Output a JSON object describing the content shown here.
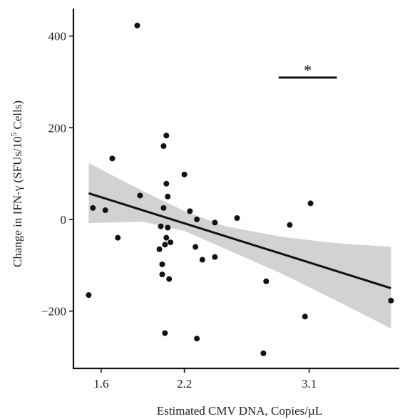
{
  "chart_data": {
    "type": "scatter",
    "title": "",
    "xlabel": "Estimated CMV DNA, Copies/µL",
    "ylabel_parts": {
      "pre": "Change in IFN-γ (SFUs/10",
      "sup": "5",
      "post": " Cells)"
    },
    "xlim": [
      1.4,
      3.75
    ],
    "ylim": [
      -325,
      460
    ],
    "xticks": [
      {
        "label": "1.6",
        "value": 1.6
      },
      {
        "label": "2.2",
        "value": 2.2
      },
      {
        "label": "3.1",
        "value": 3.1
      }
    ],
    "yticks": [
      {
        "label": "400",
        "value": 400
      },
      {
        "label": "200",
        "value": 200
      },
      {
        "label": "0",
        "value": 0
      },
      {
        "label": "−200",
        "value": -200
      }
    ],
    "points": [
      [
        1.51,
        -165
      ],
      [
        1.54,
        25
      ],
      [
        1.63,
        20
      ],
      [
        1.68,
        133
      ],
      [
        1.72,
        -40
      ],
      [
        1.86,
        423
      ],
      [
        1.88,
        52
      ],
      [
        2.02,
        -65
      ],
      [
        2.03,
        -15
      ],
      [
        2.04,
        -98
      ],
      [
        2.04,
        -120
      ],
      [
        2.05,
        160
      ],
      [
        2.05,
        25
      ],
      [
        2.06,
        -55
      ],
      [
        2.06,
        -248
      ],
      [
        2.07,
        183
      ],
      [
        2.07,
        78
      ],
      [
        2.07,
        -40
      ],
      [
        2.08,
        50
      ],
      [
        2.08,
        -18
      ],
      [
        2.09,
        -130
      ],
      [
        2.1,
        -50
      ],
      [
        2.2,
        98
      ],
      [
        2.24,
        18
      ],
      [
        2.28,
        -60
      ],
      [
        2.29,
        0
      ],
      [
        2.29,
        -260
      ],
      [
        2.33,
        -88
      ],
      [
        2.42,
        -7
      ],
      [
        2.42,
        -82
      ],
      [
        2.58,
        3
      ],
      [
        2.77,
        -292
      ],
      [
        2.79,
        -135
      ],
      [
        2.96,
        -12
      ],
      [
        3.07,
        -212
      ],
      [
        3.11,
        35
      ],
      [
        3.69,
        -177
      ]
    ],
    "fit": {
      "x1": 1.51,
      "y1": 57,
      "x2": 3.69,
      "y2": -150
    },
    "confidence_band": {
      "upper": [
        [
          1.51,
          123
        ],
        [
          1.9,
          62
        ],
        [
          2.2,
          18
        ],
        [
          2.5,
          -15
        ],
        [
          2.9,
          -38
        ],
        [
          3.3,
          -52
        ],
        [
          3.69,
          -60
        ]
      ],
      "lower": [
        [
          1.51,
          -8
        ],
        [
          1.9,
          -5
        ],
        [
          2.2,
          -25
        ],
        [
          2.5,
          -65
        ],
        [
          2.9,
          -118
        ],
        [
          3.3,
          -178
        ],
        [
          3.69,
          -238
        ]
      ]
    },
    "annotation": {
      "text": "*",
      "x_from": 2.88,
      "x_to": 3.3,
      "y": 300
    },
    "colors": {
      "points": "#111111",
      "line": "#111111",
      "band": "#d2d2d2",
      "axis": "#111111"
    }
  }
}
